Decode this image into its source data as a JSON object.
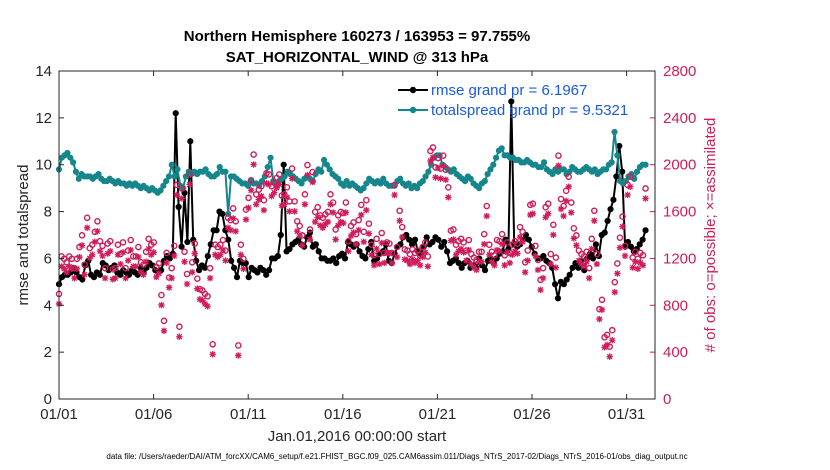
{
  "chart_data": {
    "type": "line",
    "title": "Northern Hemisphere 160273 / 163953 = 97.755%",
    "subtitle": "SAT_HORIZONTAL_WIND @ 313 hPa",
    "xlabel": "Jan.01,2016 00:00:00 start",
    "ylabel": "rmse and totalspread",
    "y2label": "# of obs: o=possible; ×=assimilated",
    "xlim": [
      0,
      31.5
    ],
    "ylim": [
      0,
      14
    ],
    "y2lim": [
      0,
      2800
    ],
    "x_ticks": [
      0,
      5,
      10,
      15,
      20,
      25,
      30
    ],
    "x_tick_labels": [
      "01/01",
      "01/06",
      "01/11",
      "01/16",
      "01/21",
      "01/26",
      "01/31"
    ],
    "y_ticks": [
      0,
      2,
      4,
      6,
      8,
      10,
      12,
      14
    ],
    "y2_ticks": [
      0,
      400,
      800,
      1200,
      1600,
      2000,
      2400,
      2800
    ],
    "colors": {
      "rmse": "#000000",
      "spread": "#15868b",
      "obs": "#d01c5b",
      "legend_text": "#1a5adf"
    },
    "legend": [
      "rmse grand pr = 6.1967",
      "totalspread grand pr = 9.5321"
    ],
    "series": [
      {
        "name": "rmse",
        "axis": "left",
        "values": [
          4.9,
          5.2,
          5.3,
          5.3,
          5.4,
          5.6,
          5.4,
          5.2,
          5.1,
          5.7,
          5.9,
          5.3,
          5.2,
          5.4,
          5.3,
          5.8,
          5.7,
          5.5,
          5.6,
          5.7,
          5.4,
          5.3,
          5.5,
          5.4,
          5.3,
          5.5,
          5.4,
          5.3,
          5.6,
          5.4,
          5.6,
          5.8,
          5.7,
          5.5,
          5.4,
          5.5,
          5.9,
          6.1,
          6.0,
          6.2,
          12.2,
          8.2,
          6.5,
          8.8,
          6.7,
          11.0,
          6.8,
          5.9,
          5.5,
          5.7,
          5.6,
          6.1,
          6.6,
          7.2,
          7.2,
          8.0,
          7.9,
          7.2,
          6.8,
          5.9,
          5.6,
          5.2,
          5.9,
          5.8,
          5.8,
          5.2,
          5.6,
          5.5,
          5.4,
          5.6,
          5.5,
          5.3,
          5.5,
          6.0,
          6.0,
          6.1,
          7.0,
          10.0,
          6.3,
          6.4,
          6.6,
          6.7,
          6.8,
          6.6,
          6.5,
          6.9,
          7.1,
          6.5,
          6.6,
          6.3,
          6.0,
          6.0,
          5.9,
          5.9,
          6.0,
          5.8,
          6.1,
          6.2,
          6.0,
          6.7,
          6.6,
          6.5,
          6.6,
          6.3,
          6.1,
          6.0,
          6.4,
          6.7,
          5.9,
          6.0,
          6.2,
          6.3,
          6.6,
          5.9,
          5.8,
          6.2,
          6.5,
          6.6,
          6.9,
          7.0,
          6.8,
          6.6,
          6.8,
          6.3,
          6.2,
          6.5,
          6.9,
          6.6,
          6.7,
          6.9,
          6.8,
          6.5,
          6.7,
          6.3,
          5.8,
          5.9,
          6.0,
          5.8,
          5.6,
          5.8,
          5.9,
          5.6,
          5.7,
          5.6,
          6.0,
          5.7,
          5.5,
          5.9,
          6.0,
          5.8,
          6.0,
          6.2,
          6.3,
          6.8,
          6.4,
          12.7,
          6.6,
          6.5,
          6.6,
          6.8,
          7.0,
          6.8,
          6.5,
          6.2,
          6.0,
          6.0,
          6.1,
          5.9,
          5.8,
          5.6,
          4.9,
          4.3,
          5.0,
          4.9,
          5.1,
          5.3,
          5.6,
          5.8,
          5.6,
          5.9,
          5.5,
          6.0,
          6.2,
          6.0,
          6.6,
          6.1,
          7.0,
          7.1,
          7.6,
          8.1,
          8.5,
          9.5,
          10.8,
          9.7,
          6.5,
          6.7,
          6.5,
          6.3,
          6.4,
          6.6,
          6.8,
          7.2
        ]
      },
      {
        "name": "totalspread",
        "axis": "left",
        "values": [
          9.8,
          10.3,
          10.4,
          10.5,
          10.3,
          10.1,
          9.7,
          9.4,
          9.6,
          9.5,
          9.5,
          9.5,
          9.4,
          9.5,
          9.6,
          9.4,
          9.3,
          9.3,
          9.4,
          9.3,
          9.2,
          9.3,
          9.2,
          9.2,
          9.1,
          9.2,
          9.1,
          9.2,
          9.1,
          9.0,
          9.1,
          9.0,
          8.9,
          9.0,
          8.9,
          8.8,
          8.9,
          9.1,
          9.3,
          9.5,
          10.0,
          9.5,
          9.8,
          9.1,
          9.0,
          9.5,
          9.7,
          9.6,
          9.7,
          9.6,
          9.7,
          9.7,
          9.8,
          9.6,
          9.5,
          9.5,
          9.6,
          9.9,
          9.7,
          9.7,
          7.9,
          9.5,
          9.5,
          9.4,
          9.3,
          9.2,
          9.2,
          9.1,
          9.3,
          9.2,
          9.2,
          9.1,
          9.3,
          9.5,
          9.9,
          10.3,
          9.3,
          9.2,
          9.3,
          9.4,
          9.5,
          9.7,
          9.6,
          9.5,
          9.4,
          9.3,
          9.2,
          9.4,
          9.5,
          9.4,
          9.3,
          9.6,
          9.8,
          9.7,
          10.2,
          10.0,
          9.8,
          9.6,
          9.5,
          9.4,
          9.2,
          9.1,
          9.3,
          9.1,
          9.2,
          9.1,
          9.0,
          8.9,
          9.0,
          9.2,
          9.4,
          9.3,
          9.2,
          9.3,
          9.2,
          9.4,
          9.2,
          9.1,
          9.1,
          9.1,
          9.3,
          9.4,
          9.2,
          9.1,
          9.2,
          9.0,
          9.1,
          9.0,
          9.2,
          9.3,
          9.5,
          9.7,
          10.0,
          10.3,
          10.4,
          10.4,
          10.0,
          9.9,
          9.8,
          9.7,
          9.8,
          9.6,
          9.5,
          9.4,
          9.3,
          9.5,
          9.4,
          9.2,
          9.1,
          9.0,
          9.2,
          9.3,
          9.6,
          9.8,
          10.0,
          10.3,
          10.6,
          10.7,
          10.4,
          10.4,
          10.3,
          10.3,
          10.2,
          10.2,
          10.1,
          10.1,
          10.2,
          10.1,
          10.0,
          10.0,
          9.9,
          9.9,
          10.1,
          9.8,
          9.7,
          9.6,
          9.8,
          9.7,
          9.8,
          9.8,
          9.6,
          9.7,
          9.9,
          9.8,
          9.7,
          9.7,
          9.8,
          9.9,
          9.8,
          9.7,
          9.8,
          9.6,
          9.7,
          9.8,
          9.8,
          10.0,
          10.1,
          11.4,
          10.4,
          9.3,
          9.2,
          9.3,
          9.5,
          9.6,
          9.4,
          9.7,
          9.9,
          10.0,
          10.0
        ]
      },
      {
        "name": "possible",
        "axis": "right",
        "marker": "circle",
        "values": [
          880,
          1200,
          1180,
          1150,
          1200,
          1180,
          1100,
          1180,
          1280,
          1380,
          1130,
          1530,
          1270,
          1300,
          1410,
          1500,
          1330,
          1290,
          1100,
          1310,
          1330,
          1090,
          1100,
          1300,
          1220,
          1320,
          1100,
          1250,
          1340,
          1200,
          1200,
          1280,
          1150,
          1130,
          1240,
          1350,
          1300,
          1320,
          1110,
          1140,
          870,
          650,
          1230,
          1020,
          1100,
          1290,
          1810,
          600,
          1780,
          1240,
          1050,
          1900,
          1150,
          1310,
          1010,
          920,
          910,
          880,
          860,
          1100,
          450,
          1300,
          1280,
          1300,
          1340,
          1250,
          1530,
          1510,
          1610,
          1500,
          440,
          1300,
          1180,
          1600,
          1700,
          1850,
          2070,
          1730,
          1770,
          1800,
          1680,
          1910,
          1900,
          1800,
          1830,
          1870,
          1900,
          1720,
          1730,
          1790,
          1670,
          1950,
          1670,
          1500,
          1460,
          1380,
          1730,
          1980,
          1430,
          1920,
          1580,
          1620,
          1550,
          1530,
          1560,
          1580,
          1730,
          1660,
          1430,
          1550,
          1580,
          1570,
          1660,
          1330,
          1460,
          1490,
          1390,
          1510,
          1640,
          1410,
          1680,
          1480,
          1300,
          1210,
          1350,
          1220,
          1400,
          1230,
          1320,
          1310,
          1230,
          1810,
          1280,
          1590,
          1450,
          1260,
          1250,
          1220,
          1260,
          1230,
          1250,
          1210,
          1280,
          1320,
          1200,
          2100,
          2130,
          1960,
          2040,
          1950,
          2060,
          1940,
          1790,
          1420,
          1430,
          1300,
          1330,
          1350,
          1320,
          1250,
          1340,
          1220,
          1190,
          1170,
          1240,
          1240,
          1390,
          1630,
          1300,
          1240,
          1210,
          1340,
          1330,
          1390,
          1210,
          1320,
          1230,
          1300,
          1330,
          1310,
          1450,
          1410,
          1150,
          1250,
          1640,
          1650,
          1290,
          1170,
          1000,
          1100,
          1620,
          1650,
          1220,
          1470,
          1190,
          2060,
          1690,
          1630,
          1760,
          1880,
          1660,
          1440,
          1380,
          1250,
          1220,
          1200,
          1240,
          1100,
          1350,
          1590,
          1220,
          750,
          830,
          510,
          530,
          430,
          570,
          980,
          1140,
          1360,
          1540,
          1290,
          1810,
          1880,
          1190,
          1240,
          1180,
          1230,
          1210,
          1780
        ]
      }
    ]
  },
  "footer": "data file: /Users/raeder/DAI/ATM_forcXX/CAM6_setup/f.e21.FHIST_BGC.f09_025.CAM6assim.011/Diags_NTrS_2017-02/Diags_NTrS_2016-01/obs_diag_output.nc"
}
